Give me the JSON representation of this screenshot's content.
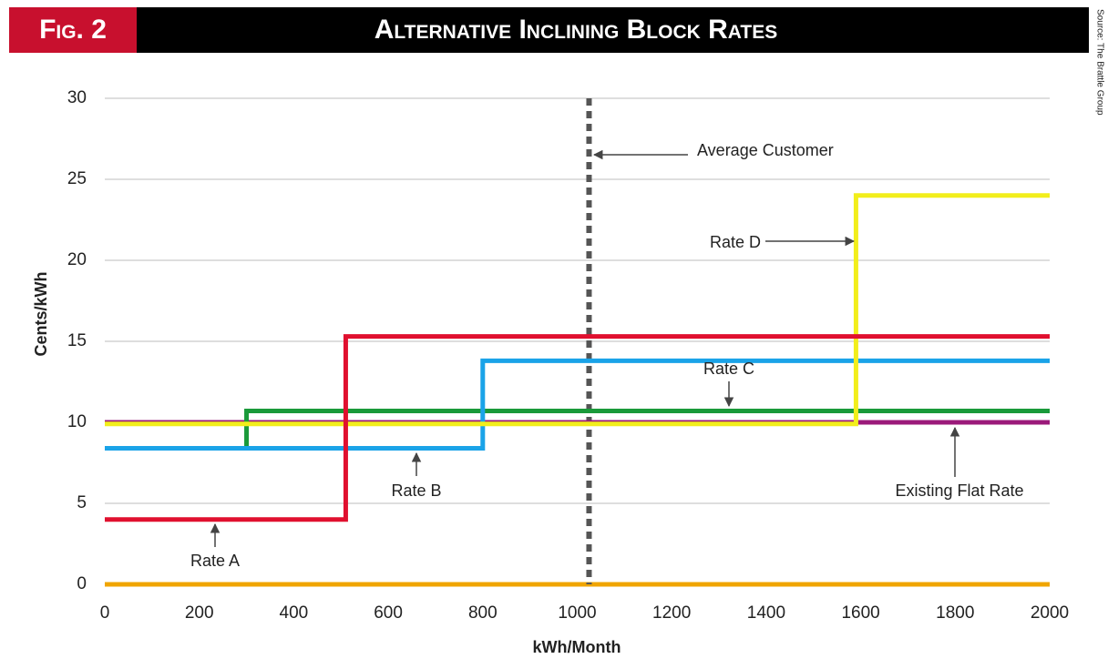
{
  "chart_data": {
    "type": "step-line",
    "figure_label": "Fig. 2",
    "title": "Alternative Inclining Block Rates",
    "source": "Source: The Brattle Group",
    "x_label": "kWh/Month",
    "y_label": "Cents/kWh",
    "xlim": [
      0,
      2000
    ],
    "ylim": [
      0,
      30
    ],
    "xticks": [
      0,
      200,
      400,
      600,
      800,
      1000,
      1200,
      1400,
      1600,
      1800,
      2000
    ],
    "yticks": [
      0,
      5,
      10,
      15,
      20,
      25,
      30
    ],
    "grid": true,
    "zero_line_color": "#f0a500",
    "vline": {
      "label": "Average Customer",
      "x": 1025,
      "color": "#555555"
    },
    "series": [
      {
        "name": "Existing Flat Rate",
        "color": "#9b1a7a",
        "x": [
          0,
          2000
        ],
        "values": [
          10,
          10
        ]
      },
      {
        "name": "Rate C",
        "color": "#1a9a3a",
        "x": [
          0,
          300,
          300,
          2000
        ],
        "values": [
          8.4,
          8.4,
          10.7,
          10.7
        ]
      },
      {
        "name": "Rate B",
        "color": "#1aa3e8",
        "x": [
          0,
          800,
          800,
          2000
        ],
        "values": [
          8.4,
          8.4,
          13.8,
          13.8
        ]
      },
      {
        "name": "Rate D",
        "color": "#f2ee1b",
        "x": [
          0,
          1590,
          1590,
          2000
        ],
        "values": [
          9.9,
          9.9,
          24,
          24
        ]
      },
      {
        "name": "Rate A",
        "color": "#e0102f",
        "x": [
          0,
          510,
          510,
          2000
        ],
        "values": [
          4,
          4,
          15.3,
          15.3
        ]
      }
    ]
  }
}
